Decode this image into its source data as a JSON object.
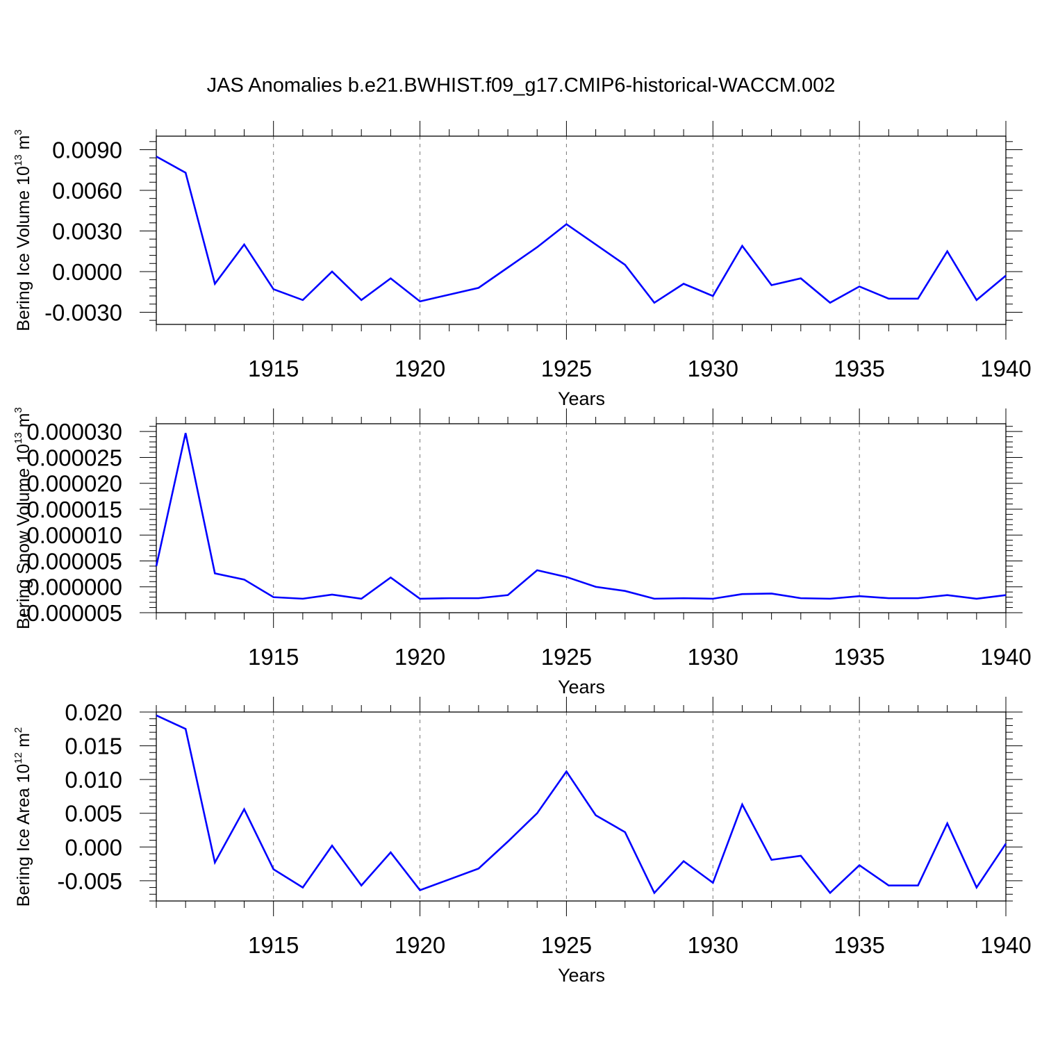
{
  "title": "JAS Anomalies b.e21.BWHIST.f09_g17.CMIP6-historical-WACCM.002",
  "colors": {
    "line": "#0000ff",
    "grid": "#777777",
    "axis": "#000000"
  },
  "chart_data": [
    {
      "type": "line",
      "ylabel": "Bering Ice Volume 10",
      "ylabel_sup": "13",
      "ylabel_unit": " m",
      "ylabel_unit_sup": "3",
      "xlabel": "Years",
      "xlim": [
        1911,
        1940
      ],
      "ylim": [
        -0.0039,
        0.01
      ],
      "yticks": [
        -0.003,
        0.0,
        0.003,
        0.006,
        0.009
      ],
      "ytick_labels": [
        "-0.0030",
        "0.0000",
        "0.0030",
        "0.0060",
        "0.0090"
      ],
      "yminor_step": 0.0006,
      "xticks": [
        1915,
        1920,
        1925,
        1930,
        1935,
        1940
      ],
      "xtick_labels": [
        "1915",
        "1920",
        "1925",
        "1930",
        "1935",
        "1940"
      ],
      "grid": "x-major-dashed",
      "x": [
        1911,
        1912,
        1913,
        1914,
        1915,
        1916,
        1917,
        1918,
        1919,
        1920,
        1921,
        1922,
        1923,
        1924,
        1925,
        1926,
        1927,
        1928,
        1929,
        1930,
        1931,
        1932,
        1933,
        1934,
        1935,
        1936,
        1937,
        1938,
        1939,
        1940
      ],
      "series": [
        {
          "values": [
            0.0085,
            0.0073,
            -0.0009,
            0.002,
            -0.0013,
            -0.0021,
            0.0,
            -0.0021,
            -0.0005,
            -0.0022,
            -0.0017,
            -0.0012,
            0.0003,
            0.0018,
            0.0035,
            0.002,
            0.0005,
            -0.0023,
            -0.0009,
            -0.0018,
            0.0019,
            -0.001,
            -0.0005,
            -0.0023,
            -0.0011,
            -0.002,
            -0.002,
            0.0015,
            -0.0021,
            -0.0003
          ]
        }
      ]
    },
    {
      "type": "line",
      "ylabel": "Bering Snow Volume 10",
      "ylabel_sup": "13",
      "ylabel_unit": " m",
      "ylabel_unit_sup": "3",
      "xlabel": "Years",
      "xlim": [
        1911,
        1940
      ],
      "ylim": [
        -5e-06,
        3.15e-05
      ],
      "yticks": [
        -5e-06,
        0.0,
        5e-06,
        1e-05,
        1.5e-05,
        2e-05,
        2.5e-05,
        3e-05
      ],
      "ytick_labels": [
        "-0.000005",
        "0.000000",
        "0.000005",
        "0.000010",
        "0.000015",
        "0.000020",
        "0.000025",
        "0.000030"
      ],
      "yminor_step": 1e-06,
      "xticks": [
        1915,
        1920,
        1925,
        1930,
        1935,
        1940
      ],
      "xtick_labels": [
        "1915",
        "1920",
        "1925",
        "1930",
        "1935",
        "1940"
      ],
      "grid": "x-major-dashed",
      "x": [
        1911,
        1912,
        1913,
        1914,
        1915,
        1916,
        1917,
        1918,
        1919,
        1920,
        1921,
        1922,
        1923,
        1924,
        1925,
        1926,
        1927,
        1928,
        1929,
        1930,
        1931,
        1932,
        1933,
        1934,
        1935,
        1936,
        1937,
        1938,
        1939,
        1940
      ],
      "series": [
        {
          "values": [
            4e-06,
            2.97e-05,
            2.6e-06,
            1.4e-06,
            -2e-06,
            -2.3e-06,
            -1.5e-06,
            -2.3e-06,
            1.8e-06,
            -2.3e-06,
            -2.2e-06,
            -2.2e-06,
            -1.6e-06,
            3.2e-06,
            1.9e-06,
            0.0,
            -8e-07,
            -2.3e-06,
            -2.2e-06,
            -2.3e-06,
            -1.4e-06,
            -1.3e-06,
            -2.2e-06,
            -2.3e-06,
            -1.8e-06,
            -2.2e-06,
            -2.2e-06,
            -1.6e-06,
            -2.3e-06,
            -1.6e-06
          ]
        }
      ]
    },
    {
      "type": "line",
      "ylabel": "Bering Ice Area 10",
      "ylabel_sup": "12",
      "ylabel_unit": " m",
      "ylabel_unit_sup": "2",
      "xlabel": "Years",
      "xlim": [
        1911,
        1940
      ],
      "ylim": [
        -0.008,
        0.02
      ],
      "yticks": [
        -0.005,
        0.0,
        0.005,
        0.01,
        0.015,
        0.02
      ],
      "ytick_labels": [
        "-0.005",
        "0.000",
        "0.005",
        "0.010",
        "0.015",
        "0.020"
      ],
      "yminor_step": 0.001,
      "xticks": [
        1915,
        1920,
        1925,
        1930,
        1935,
        1940
      ],
      "xtick_labels": [
        "1915",
        "1920",
        "1925",
        "1930",
        "1935",
        "1940"
      ],
      "grid": "x-major-dashed",
      "x": [
        1911,
        1912,
        1913,
        1914,
        1915,
        1916,
        1917,
        1918,
        1919,
        1920,
        1921,
        1922,
        1923,
        1924,
        1925,
        1926,
        1927,
        1928,
        1929,
        1930,
        1931,
        1932,
        1933,
        1934,
        1935,
        1936,
        1937,
        1938,
        1939,
        1940
      ],
      "series": [
        {
          "values": [
            0.0195,
            0.0175,
            -0.0023,
            0.0056,
            -0.0033,
            -0.006,
            0.0002,
            -0.0057,
            -0.0008,
            -0.0064,
            -0.0048,
            -0.0032,
            0.0008,
            0.005,
            0.0112,
            0.0047,
            0.0022,
            -0.0068,
            -0.0021,
            -0.0053,
            0.0063,
            -0.0019,
            -0.0013,
            -0.0068,
            -0.0027,
            -0.0057,
            -0.0057,
            0.0035,
            -0.006,
            0.0005
          ]
        }
      ]
    }
  ]
}
